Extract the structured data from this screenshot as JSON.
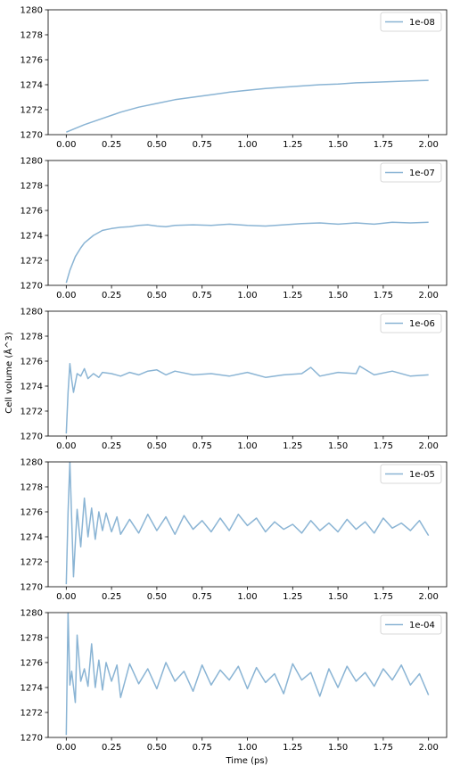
{
  "figure": {
    "xlabel": "Time (ps)",
    "ylabel": "Cell volume (Å^3)"
  },
  "chart_data": [
    {
      "type": "line",
      "legend": "1e-08",
      "legend_position": "top-right",
      "xlim": [
        -0.1,
        2.1
      ],
      "ylim": [
        1270,
        1280
      ],
      "x_ticks": [
        "0.00",
        "0.25",
        "0.50",
        "0.75",
        "1.00",
        "1.25",
        "1.50",
        "1.75",
        "2.00"
      ],
      "y_ticks": [
        "1270",
        "1272",
        "1274",
        "1276",
        "1278",
        "1280"
      ],
      "x": [
        0.0,
        0.1,
        0.2,
        0.3,
        0.4,
        0.5,
        0.6,
        0.7,
        0.8,
        0.9,
        1.0,
        1.1,
        1.2,
        1.3,
        1.4,
        1.5,
        1.6,
        1.7,
        1.8,
        1.9,
        2.0
      ],
      "y": [
        1270.2,
        1270.8,
        1271.3,
        1271.8,
        1272.2,
        1272.5,
        1272.8,
        1273.0,
        1273.2,
        1273.4,
        1273.55,
        1273.7,
        1273.8,
        1273.9,
        1274.0,
        1274.05,
        1274.15,
        1274.2,
        1274.25,
        1274.3,
        1274.35
      ],
      "color": "#8ab4d4"
    },
    {
      "type": "line",
      "legend": "1e-07",
      "legend_position": "top-right",
      "xlim": [
        -0.1,
        2.1
      ],
      "ylim": [
        1270,
        1280
      ],
      "x_ticks": [
        "0.00",
        "0.25",
        "0.50",
        "0.75",
        "1.00",
        "1.25",
        "1.50",
        "1.75",
        "2.00"
      ],
      "y_ticks": [
        "1270",
        "1272",
        "1274",
        "1276",
        "1278",
        "1280"
      ],
      "x": [
        0.0,
        0.02,
        0.05,
        0.08,
        0.1,
        0.15,
        0.2,
        0.25,
        0.3,
        0.35,
        0.4,
        0.45,
        0.5,
        0.55,
        0.6,
        0.7,
        0.8,
        0.9,
        1.0,
        1.1,
        1.2,
        1.3,
        1.4,
        1.5,
        1.6,
        1.7,
        1.8,
        1.9,
        2.0
      ],
      "y": [
        1270.2,
        1271.2,
        1272.3,
        1273.0,
        1273.4,
        1274.0,
        1274.4,
        1274.55,
        1274.65,
        1274.7,
        1274.8,
        1274.85,
        1274.75,
        1274.7,
        1274.8,
        1274.85,
        1274.8,
        1274.9,
        1274.8,
        1274.75,
        1274.85,
        1274.95,
        1275.0,
        1274.9,
        1275.0,
        1274.9,
        1275.05,
        1275.0,
        1275.05
      ],
      "color": "#8ab4d4"
    },
    {
      "type": "line",
      "legend": "1e-06",
      "legend_position": "top-right",
      "xlim": [
        -0.1,
        2.1
      ],
      "ylim": [
        1270,
        1280
      ],
      "x_ticks": [
        "0.00",
        "0.25",
        "0.50",
        "0.75",
        "1.00",
        "1.25",
        "1.50",
        "1.75",
        "2.00"
      ],
      "y_ticks": [
        "1270",
        "1272",
        "1274",
        "1276",
        "1278",
        "1280"
      ],
      "x": [
        0.0,
        0.01,
        0.02,
        0.03,
        0.04,
        0.06,
        0.08,
        0.1,
        0.12,
        0.15,
        0.18,
        0.2,
        0.25,
        0.3,
        0.35,
        0.4,
        0.45,
        0.5,
        0.55,
        0.6,
        0.7,
        0.8,
        0.9,
        1.0,
        1.1,
        1.2,
        1.3,
        1.35,
        1.4,
        1.5,
        1.6,
        1.62,
        1.7,
        1.8,
        1.9,
        2.0
      ],
      "y": [
        1270.2,
        1273.5,
        1275.8,
        1274.5,
        1273.5,
        1275.0,
        1274.8,
        1275.4,
        1274.6,
        1275.0,
        1274.7,
        1275.1,
        1275.0,
        1274.8,
        1275.1,
        1274.9,
        1275.2,
        1275.3,
        1274.9,
        1275.2,
        1274.9,
        1275.0,
        1274.8,
        1275.1,
        1274.7,
        1274.9,
        1275.0,
        1275.5,
        1274.8,
        1275.1,
        1275.0,
        1275.6,
        1274.9,
        1275.2,
        1274.8,
        1274.9
      ],
      "color": "#8ab4d4"
    },
    {
      "type": "line",
      "legend": "1e-05",
      "legend_position": "top-right",
      "xlim": [
        -0.1,
        2.1
      ],
      "ylim": [
        1270,
        1280
      ],
      "x_ticks": [
        "0.00",
        "0.25",
        "0.50",
        "0.75",
        "1.00",
        "1.25",
        "1.50",
        "1.75",
        "2.00"
      ],
      "y_ticks": [
        "1270",
        "1272",
        "1274",
        "1276",
        "1278",
        "1280"
      ],
      "x": [
        0.0,
        0.01,
        0.02,
        0.04,
        0.06,
        0.08,
        0.1,
        0.12,
        0.14,
        0.16,
        0.18,
        0.2,
        0.22,
        0.25,
        0.28,
        0.3,
        0.35,
        0.4,
        0.45,
        0.5,
        0.55,
        0.6,
        0.65,
        0.7,
        0.75,
        0.8,
        0.85,
        0.9,
        0.95,
        1.0,
        1.05,
        1.1,
        1.15,
        1.2,
        1.25,
        1.3,
        1.35,
        1.4,
        1.45,
        1.5,
        1.55,
        1.6,
        1.65,
        1.7,
        1.75,
        1.8,
        1.85,
        1.9,
        1.95,
        2.0
      ],
      "y": [
        1270.2,
        1276.0,
        1280.0,
        1270.8,
        1276.2,
        1273.2,
        1277.1,
        1274.0,
        1276.3,
        1273.8,
        1276.0,
        1274.5,
        1275.9,
        1274.4,
        1275.6,
        1274.2,
        1275.4,
        1274.3,
        1275.8,
        1274.5,
        1275.6,
        1274.2,
        1275.7,
        1274.6,
        1275.3,
        1274.4,
        1275.5,
        1274.5,
        1275.8,
        1274.9,
        1275.5,
        1274.4,
        1275.2,
        1274.6,
        1275.0,
        1274.3,
        1275.3,
        1274.5,
        1275.1,
        1274.4,
        1275.4,
        1274.6,
        1275.2,
        1274.3,
        1275.5,
        1274.7,
        1275.1,
        1274.5,
        1275.3,
        1274.1
      ],
      "color": "#8ab4d4"
    },
    {
      "type": "line",
      "legend": "1e-04",
      "legend_position": "top-right",
      "xlim": [
        -0.1,
        2.1
      ],
      "ylim": [
        1270,
        1280
      ],
      "x_ticks": [
        "0.00",
        "0.25",
        "0.50",
        "0.75",
        "1.00",
        "1.25",
        "1.50",
        "1.75",
        "2.00"
      ],
      "y_ticks": [
        "1270",
        "1272",
        "1274",
        "1276",
        "1278",
        "1280"
      ],
      "x": [
        0.0,
        0.01,
        0.02,
        0.03,
        0.05,
        0.06,
        0.08,
        0.1,
        0.12,
        0.14,
        0.16,
        0.18,
        0.2,
        0.22,
        0.25,
        0.28,
        0.3,
        0.35,
        0.4,
        0.45,
        0.5,
        0.55,
        0.6,
        0.65,
        0.7,
        0.75,
        0.8,
        0.85,
        0.9,
        0.95,
        1.0,
        1.05,
        1.1,
        1.15,
        1.2,
        1.25,
        1.3,
        1.35,
        1.4,
        1.45,
        1.5,
        1.55,
        1.6,
        1.65,
        1.7,
        1.75,
        1.8,
        1.85,
        1.9,
        1.95,
        2.0
      ],
      "y": [
        1270.2,
        1280.0,
        1274.2,
        1275.3,
        1272.8,
        1278.2,
        1274.5,
        1275.5,
        1274.1,
        1277.5,
        1274.0,
        1276.2,
        1273.8,
        1276.0,
        1274.5,
        1275.8,
        1273.2,
        1275.9,
        1274.3,
        1275.5,
        1273.9,
        1276.0,
        1274.5,
        1275.3,
        1273.7,
        1275.8,
        1274.2,
        1275.4,
        1274.6,
        1275.7,
        1273.9,
        1275.6,
        1274.4,
        1275.1,
        1273.5,
        1275.9,
        1274.6,
        1275.2,
        1273.3,
        1275.5,
        1274.0,
        1275.7,
        1274.5,
        1275.2,
        1274.1,
        1275.5,
        1274.6,
        1275.8,
        1274.2,
        1275.1,
        1273.4
      ],
      "color": "#8ab4d4"
    }
  ]
}
